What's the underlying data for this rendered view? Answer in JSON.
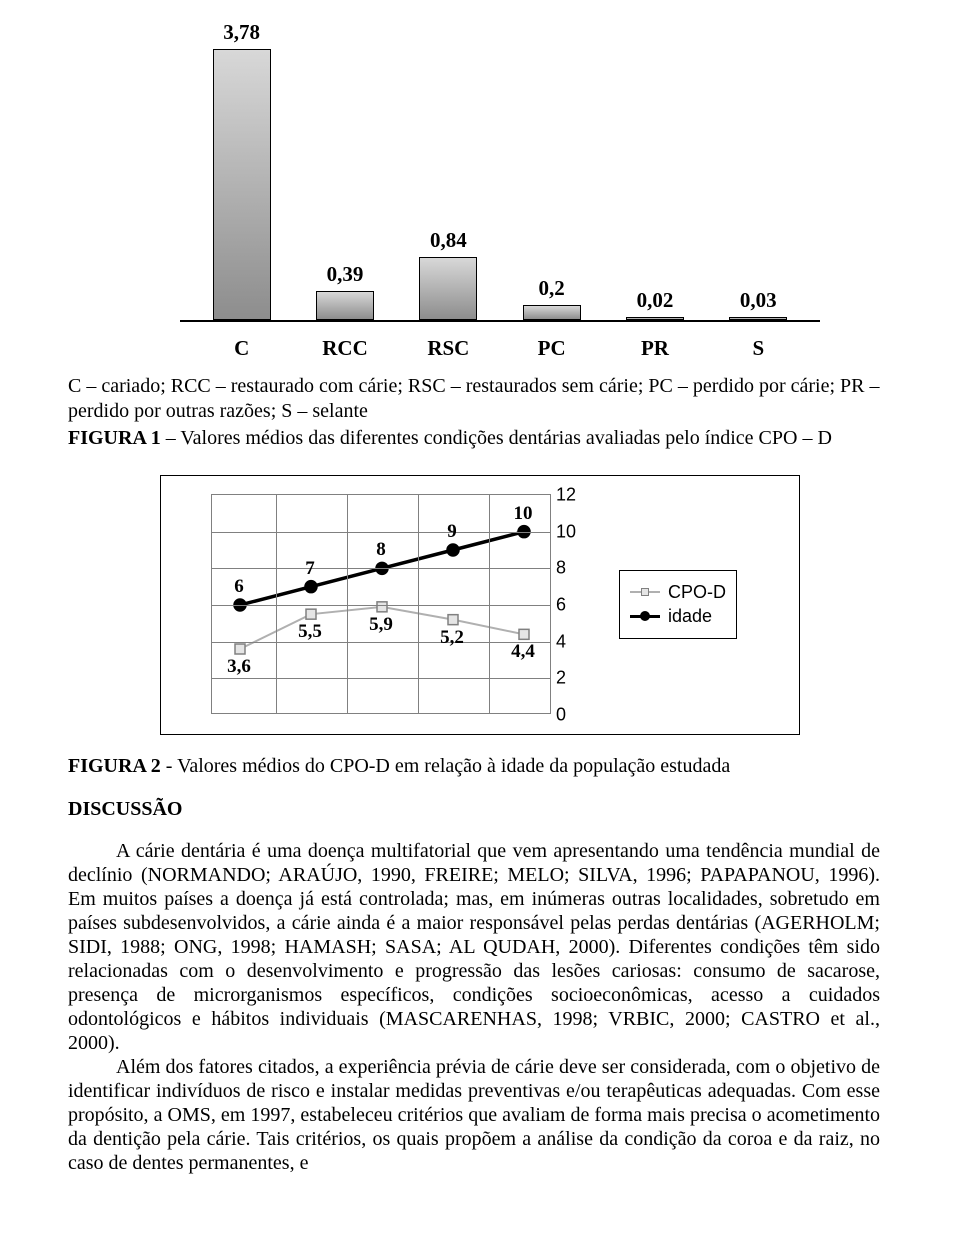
{
  "fig1": {
    "type": "bar",
    "categories": [
      "C",
      "RCC",
      "RSC",
      "PC",
      "PR",
      "S"
    ],
    "values": [
      3.78,
      0.39,
      0.84,
      0.2,
      0.02,
      0.03
    ],
    "value_labels": [
      "3,78",
      "0,39",
      "0,84",
      "0,2",
      "0,02",
      "0,03"
    ],
    "ylim": [
      0,
      4
    ],
    "bar_fill_top": "#d8d8d8",
    "bar_fill_bottom": "#8d8d8d",
    "bar_border": "#000000",
    "axis_color": "#000000",
    "label_fontsize": 21,
    "label_fontweight": "bold",
    "legend_text": "C – cariado; RCC – restaurado com cárie; RSC – restaurados sem cárie; PC – perdido por cárie; PR – perdido por outras razões; S – selante",
    "caption_bold": "FIGURA 1",
    "caption_rest": " – Valores médios das diferentes condições dentárias avaliadas pelo índice CPO – D"
  },
  "fig2": {
    "type": "line",
    "series": [
      {
        "name": "CPO-D",
        "color": "#b0b0b0",
        "marker_border": "#808080",
        "marker_fill": "#e5e5e5",
        "line_width": 2,
        "marker": "square",
        "y": [
          3.6,
          5.5,
          5.9,
          5.2,
          4.4
        ],
        "labels": [
          "3,6",
          "5,5",
          "5,9",
          "5,2",
          "4,4"
        ]
      },
      {
        "name": "idade",
        "color": "#000000",
        "marker_border": "#000000",
        "marker_fill": "#000000",
        "line_width": 3.5,
        "marker": "circle",
        "y": [
          6,
          7,
          8,
          9,
          10
        ],
        "labels": [
          "6",
          "7",
          "8",
          "9",
          "10"
        ]
      }
    ],
    "n_x": 5,
    "ylim": [
      0,
      12
    ],
    "yticks": [
      0,
      2,
      4,
      6,
      8,
      10,
      12
    ],
    "grid_color": "#808080",
    "background": "#ffffff",
    "axis_fontfamily": "Arial",
    "axis_fontsize": 18,
    "caption_bold": "FIGURA 2",
    "caption_rest": " - Valores médios do CPO-D em relação à idade da população estudada"
  },
  "discussion_heading": "DISCUSSÃO",
  "paragraphs": [
    "A cárie dentária é uma doença multifatorial que vem apresentando uma tendência mundial de declínio (NORMANDO; ARAÚJO, 1990, FREIRE; MELO; SILVA, 1996; PAPAPANOU, 1996). Em muitos países a doença já está controlada; mas, em inúmeras outras localidades, sobretudo em países subdesenvolvidos, a cárie ainda é a maior responsável pelas perdas dentárias (AGERHOLM; SIDI, 1988; ONG, 1998; HAMASH; SASA; AL QUDAH, 2000). Diferentes condições têm sido relacionadas com o desenvolvimento e progressão das lesões cariosas: consumo de sacarose, presença de microrganismos específicos, condições socioeconômicas, acesso a cuidados odontológicos e hábitos individuais (MASCARENHAS, 1998; VRBIC, 2000; CASTRO et al., 2000).",
    "Além dos fatores citados, a experiência prévia de cárie deve ser considerada, com o objetivo de identificar indivíduos de risco e instalar medidas preventivas e/ou terapêuticas adequadas. Com esse propósito, a OMS, em 1997, estabeleceu critérios que avaliam de forma mais precisa o acometimento da dentição pela cárie. Tais critérios, os quais propõem a análise da condição da coroa e da raiz, no caso de dentes permanentes, e"
  ]
}
